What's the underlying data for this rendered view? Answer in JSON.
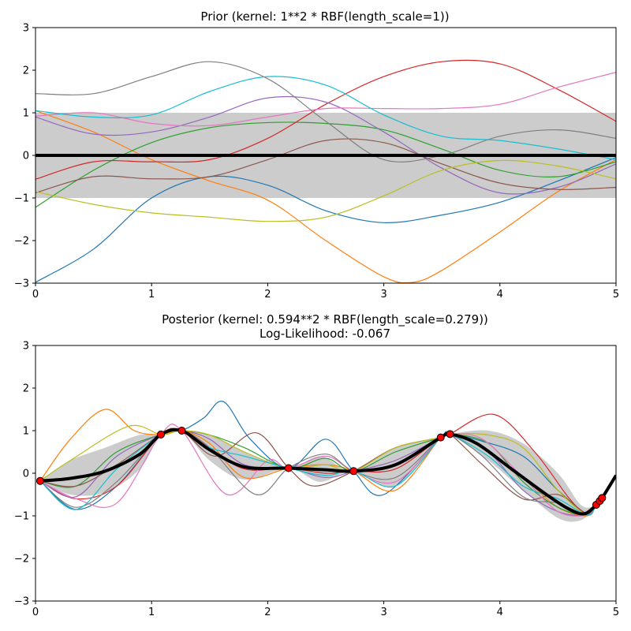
{
  "chart_data": [
    {
      "type": "line",
      "title": "Prior (kernel:  1**2 * RBF(length_scale=1))",
      "xlabel": "",
      "ylabel": "",
      "xlim": [
        0,
        5
      ],
      "ylim": [
        -3,
        3
      ],
      "xticks": [
        "0",
        "1",
        "2",
        "3",
        "4",
        "5"
      ],
      "yticks": [
        "−3",
        "−2",
        "−1",
        "0",
        "1",
        "2",
        "3"
      ],
      "band_color": "#cccccc",
      "mean": {
        "color": "#000000",
        "x": [
          0,
          5
        ],
        "y": [
          0,
          0
        ]
      },
      "band": {
        "x": [
          0,
          5
        ],
        "lower": [
          -1,
          -1
        ],
        "upper": [
          1,
          1
        ]
      },
      "samples": [
        {
          "color": "#1f77b4",
          "x": [
            0,
            0.5,
            1,
            1.5,
            2,
            2.5,
            3,
            3.5,
            4,
            4.5,
            5
          ],
          "y": [
            -2.98,
            -2.2,
            -1.0,
            -0.5,
            -0.7,
            -1.3,
            -1.58,
            -1.4,
            -1.1,
            -0.6,
            -0.05
          ]
        },
        {
          "color": "#ff7f0e",
          "x": [
            0,
            0.5,
            1,
            1.5,
            2,
            2.5,
            3,
            3.25,
            3.5,
            4,
            4.5,
            5
          ],
          "y": [
            1.05,
            0.55,
            -0.1,
            -0.6,
            -1.05,
            -2.0,
            -2.85,
            -2.98,
            -2.7,
            -1.8,
            -0.85,
            -0.1
          ]
        },
        {
          "color": "#2ca02c",
          "x": [
            0,
            0.5,
            1,
            1.5,
            2,
            2.5,
            3,
            3.5,
            4,
            4.5,
            5
          ],
          "y": [
            -1.22,
            -0.35,
            0.3,
            0.65,
            0.77,
            0.75,
            0.6,
            0.15,
            -0.35,
            -0.5,
            -0.15
          ]
        },
        {
          "color": "#d62728",
          "x": [
            0,
            0.5,
            1,
            1.5,
            2,
            2.5,
            3,
            3.5,
            4,
            4.5,
            5
          ],
          "y": [
            -0.56,
            -0.15,
            -0.15,
            -0.1,
            0.4,
            1.2,
            1.85,
            2.2,
            2.15,
            1.55,
            0.8
          ]
        },
        {
          "color": "#9467bd",
          "x": [
            0,
            0.5,
            1,
            1.5,
            2,
            2.5,
            3,
            3.5,
            4,
            4.5,
            5
          ],
          "y": [
            0.9,
            0.5,
            0.55,
            0.9,
            1.35,
            1.25,
            0.55,
            -0.3,
            -0.88,
            -0.75,
            -0.2
          ]
        },
        {
          "color": "#8c564b",
          "x": [
            0,
            0.5,
            1,
            1.5,
            2,
            2.5,
            3,
            3.5,
            4,
            4.5,
            5
          ],
          "y": [
            -0.88,
            -0.5,
            -0.55,
            -0.5,
            -0.1,
            0.35,
            0.3,
            -0.2,
            -0.65,
            -0.8,
            -0.75
          ]
        },
        {
          "color": "#e377c2",
          "x": [
            0,
            0.5,
            1,
            1.5,
            2,
            2.5,
            3,
            3.5,
            4,
            4.5,
            5
          ],
          "y": [
            0.92,
            1.0,
            0.75,
            0.7,
            0.9,
            1.1,
            1.1,
            1.1,
            1.2,
            1.6,
            1.95
          ]
        },
        {
          "color": "#7f7f7f",
          "x": [
            0,
            0.5,
            1,
            1.5,
            2,
            2.5,
            3,
            3.5,
            4,
            4.5,
            5
          ],
          "y": [
            1.45,
            1.45,
            1.85,
            2.2,
            1.8,
            0.8,
            -0.1,
            0.0,
            0.45,
            0.6,
            0.4
          ]
        },
        {
          "color": "#bcbd22",
          "x": [
            0,
            0.5,
            1,
            1.5,
            2,
            2.5,
            3,
            3.5,
            4,
            4.5,
            5
          ],
          "y": [
            -0.85,
            -1.15,
            -1.35,
            -1.45,
            -1.55,
            -1.45,
            -0.95,
            -0.35,
            -0.12,
            -0.25,
            -0.55
          ]
        },
        {
          "color": "#17becf",
          "x": [
            0,
            0.5,
            1,
            1.5,
            2,
            2.5,
            3,
            3.5,
            4,
            4.5,
            5
          ],
          "y": [
            1.05,
            0.9,
            0.95,
            1.5,
            1.85,
            1.65,
            0.95,
            0.45,
            0.35,
            0.15,
            -0.1
          ]
        }
      ]
    },
    {
      "type": "line",
      "title": "Posterior (kernel: 0.594**2 * RBF(length_scale=0.279))",
      "subtitle": "Log-Likelihood: -0.067",
      "xlabel": "",
      "ylabel": "",
      "xlim": [
        0,
        5
      ],
      "ylim": [
        -3,
        3
      ],
      "xticks": [
        "0",
        "1",
        "2",
        "3",
        "4",
        "5"
      ],
      "yticks": [
        "−3",
        "−2",
        "−1",
        "0",
        "1",
        "2",
        "3"
      ],
      "band_color": "#cccccc",
      "marker_color": "#ff0000",
      "training_points": {
        "x": [
          0.04,
          1.08,
          1.26,
          2.18,
          2.74,
          3.49,
          3.57,
          4.83,
          4.86,
          4.88
        ],
        "y": [
          -0.18,
          0.91,
          1.0,
          0.12,
          0.05,
          0.84,
          0.92,
          -0.74,
          -0.65,
          -0.58
        ]
      },
      "mean": {
        "color": "#000000",
        "x": [
          0.04,
          0.3,
          0.6,
          0.9,
          1.08,
          1.26,
          1.5,
          1.8,
          2.18,
          2.5,
          2.74,
          3.1,
          3.49,
          3.57,
          3.8,
          4.1,
          4.4,
          4.6,
          4.73,
          4.83,
          4.88,
          5.0
        ],
        "y": [
          -0.18,
          -0.12,
          0.05,
          0.45,
          0.91,
          1.0,
          0.55,
          0.15,
          0.12,
          0.08,
          0.05,
          0.2,
          0.84,
          0.92,
          0.7,
          0.1,
          -0.5,
          -0.85,
          -0.95,
          -0.74,
          -0.58,
          -0.05
        ]
      },
      "band": {
        "x": [
          0.04,
          0.3,
          0.6,
          0.9,
          1.08,
          1.26,
          1.5,
          1.8,
          2.18,
          2.45,
          2.74,
          3.1,
          3.49,
          3.57,
          3.9,
          4.2,
          4.5,
          4.7,
          4.83,
          4.88,
          5.0
        ],
        "lower": [
          -0.18,
          -0.5,
          -0.45,
          0.1,
          0.91,
          1.0,
          0.3,
          -0.15,
          0.12,
          -0.2,
          0.05,
          -0.3,
          0.84,
          0.92,
          0.3,
          -0.4,
          -1.05,
          -1.1,
          -0.74,
          -0.58,
          -0.05
        ],
        "upper": [
          -0.18,
          0.3,
          0.6,
          0.9,
          0.91,
          1.0,
          0.9,
          0.5,
          0.12,
          0.4,
          0.05,
          0.6,
          0.84,
          0.92,
          1.0,
          0.7,
          0.0,
          -0.75,
          -0.74,
          -0.58,
          -0.05
        ]
      },
      "samples": [
        {
          "color": "#1f77b4",
          "x": [
            0.04,
            0.35,
            0.7,
            1.08,
            1.26,
            1.45,
            1.62,
            1.85,
            2.18,
            2.5,
            2.74,
            3.0,
            3.49,
            3.57,
            3.85,
            4.2,
            4.5,
            4.75,
            4.83,
            4.88
          ],
          "y": [
            -0.18,
            -0.85,
            -0.3,
            0.91,
            1.0,
            1.3,
            1.68,
            0.8,
            0.12,
            0.8,
            0.05,
            -0.5,
            0.84,
            0.92,
            0.75,
            0.4,
            -0.4,
            -0.95,
            -0.74,
            -0.58
          ]
        },
        {
          "color": "#ff7f0e",
          "x": [
            0.04,
            0.3,
            0.6,
            0.85,
            1.08,
            1.26,
            1.5,
            1.8,
            2.18,
            2.5,
            2.74,
            3.1,
            3.49,
            3.57,
            3.85,
            4.2,
            4.5,
            4.75,
            4.83,
            4.88
          ],
          "y": [
            -0.18,
            0.8,
            1.5,
            1.0,
            0.91,
            1.0,
            0.7,
            -0.1,
            0.12,
            0.2,
            0.05,
            -0.4,
            0.84,
            0.92,
            0.6,
            -0.1,
            -0.8,
            -1.0,
            -0.74,
            -0.58
          ]
        },
        {
          "color": "#2ca02c",
          "x": [
            0.04,
            0.35,
            0.7,
            1.08,
            1.26,
            1.5,
            1.8,
            2.18,
            2.5,
            2.74,
            3.1,
            3.49,
            3.57,
            3.9,
            4.2,
            4.5,
            4.75,
            4.83,
            4.88
          ],
          "y": [
            -0.18,
            -0.3,
            0.5,
            0.91,
            1.0,
            0.9,
            0.6,
            0.12,
            0.35,
            0.05,
            0.5,
            0.84,
            0.92,
            0.7,
            -0.2,
            -0.8,
            -0.98,
            -0.74,
            -0.58
          ]
        },
        {
          "color": "#d62728",
          "x": [
            0.04,
            0.35,
            0.7,
            1.08,
            1.26,
            1.5,
            1.8,
            2.18,
            2.5,
            2.74,
            3.1,
            3.49,
            3.57,
            3.95,
            4.3,
            4.6,
            4.75,
            4.83,
            4.88
          ],
          "y": [
            -0.18,
            -0.6,
            -0.3,
            0.91,
            1.0,
            0.6,
            0.1,
            0.12,
            0.0,
            0.05,
            0.1,
            0.84,
            0.92,
            1.38,
            0.5,
            -0.6,
            -0.95,
            -0.74,
            -0.58
          ]
        },
        {
          "color": "#9467bd",
          "x": [
            0.04,
            0.35,
            0.7,
            1.08,
            1.26,
            1.5,
            1.8,
            2.18,
            2.5,
            2.74,
            3.1,
            3.49,
            3.57,
            3.9,
            4.2,
            4.5,
            4.75,
            4.83,
            4.88
          ],
          "y": [
            -0.18,
            -0.55,
            0.4,
            0.91,
            1.0,
            0.8,
            0.2,
            0.12,
            -0.1,
            0.05,
            0.3,
            0.84,
            0.92,
            0.5,
            -0.4,
            -0.9,
            -0.98,
            -0.74,
            -0.58
          ]
        },
        {
          "color": "#8c564b",
          "x": [
            0.04,
            0.35,
            0.7,
            1.08,
            1.26,
            1.55,
            1.9,
            2.18,
            2.4,
            2.74,
            3.1,
            3.49,
            3.57,
            3.85,
            4.2,
            4.5,
            4.75,
            4.83,
            4.88
          ],
          "y": [
            -0.18,
            -0.3,
            0.2,
            0.91,
            1.0,
            0.4,
            0.95,
            0.12,
            -0.3,
            0.05,
            0.6,
            0.84,
            0.92,
            0.2,
            -0.6,
            -0.5,
            -0.95,
            -0.74,
            -0.58
          ]
        },
        {
          "color": "#e377c2",
          "x": [
            0.04,
            0.35,
            0.7,
            1.08,
            1.26,
            1.65,
            2.0,
            2.18,
            2.5,
            2.74,
            3.1,
            3.49,
            3.57,
            3.85,
            4.2,
            4.5,
            4.75,
            4.83,
            4.88
          ],
          "y": [
            -0.18,
            -0.6,
            -0.7,
            0.91,
            1.0,
            -0.5,
            0.3,
            0.12,
            0.4,
            0.05,
            -0.2,
            0.84,
            0.92,
            0.8,
            -0.1,
            -0.9,
            -0.98,
            -0.74,
            -0.58
          ]
        },
        {
          "color": "#7f7f7f",
          "x": [
            0.04,
            0.35,
            0.7,
            1.08,
            1.26,
            1.5,
            1.9,
            2.18,
            2.5,
            2.74,
            3.1,
            3.49,
            3.57,
            3.85,
            4.2,
            4.5,
            4.75,
            4.83,
            4.88
          ],
          "y": [
            -0.18,
            -0.8,
            -0.2,
            0.91,
            1.0,
            0.6,
            -0.5,
            0.12,
            0.45,
            0.05,
            -0.1,
            0.84,
            0.92,
            0.4,
            -0.55,
            -0.7,
            -0.98,
            -0.74,
            -0.58
          ]
        },
        {
          "color": "#bcbd22",
          "x": [
            0.04,
            0.3,
            0.8,
            1.08,
            1.26,
            1.5,
            1.8,
            2.18,
            2.5,
            2.74,
            3.1,
            3.49,
            3.57,
            3.9,
            4.2,
            4.5,
            4.75,
            4.83,
            4.88
          ],
          "y": [
            -0.18,
            0.3,
            1.1,
            0.91,
            1.0,
            0.9,
            0.5,
            0.12,
            0.2,
            0.05,
            0.6,
            0.84,
            0.92,
            0.9,
            0.6,
            -0.4,
            -0.98,
            -0.74,
            -0.58
          ]
        },
        {
          "color": "#17becf",
          "x": [
            0.04,
            0.35,
            0.7,
            1.08,
            1.26,
            1.5,
            1.8,
            2.18,
            2.5,
            2.74,
            3.1,
            3.49,
            3.57,
            3.9,
            4.2,
            4.5,
            4.75,
            4.83,
            4.88
          ],
          "y": [
            -0.18,
            -0.85,
            0.1,
            0.91,
            1.0,
            0.6,
            0.4,
            0.12,
            -0.05,
            0.05,
            -0.3,
            0.84,
            0.92,
            0.4,
            -0.3,
            -0.6,
            -0.98,
            -0.74,
            -0.58
          ]
        }
      ]
    }
  ]
}
